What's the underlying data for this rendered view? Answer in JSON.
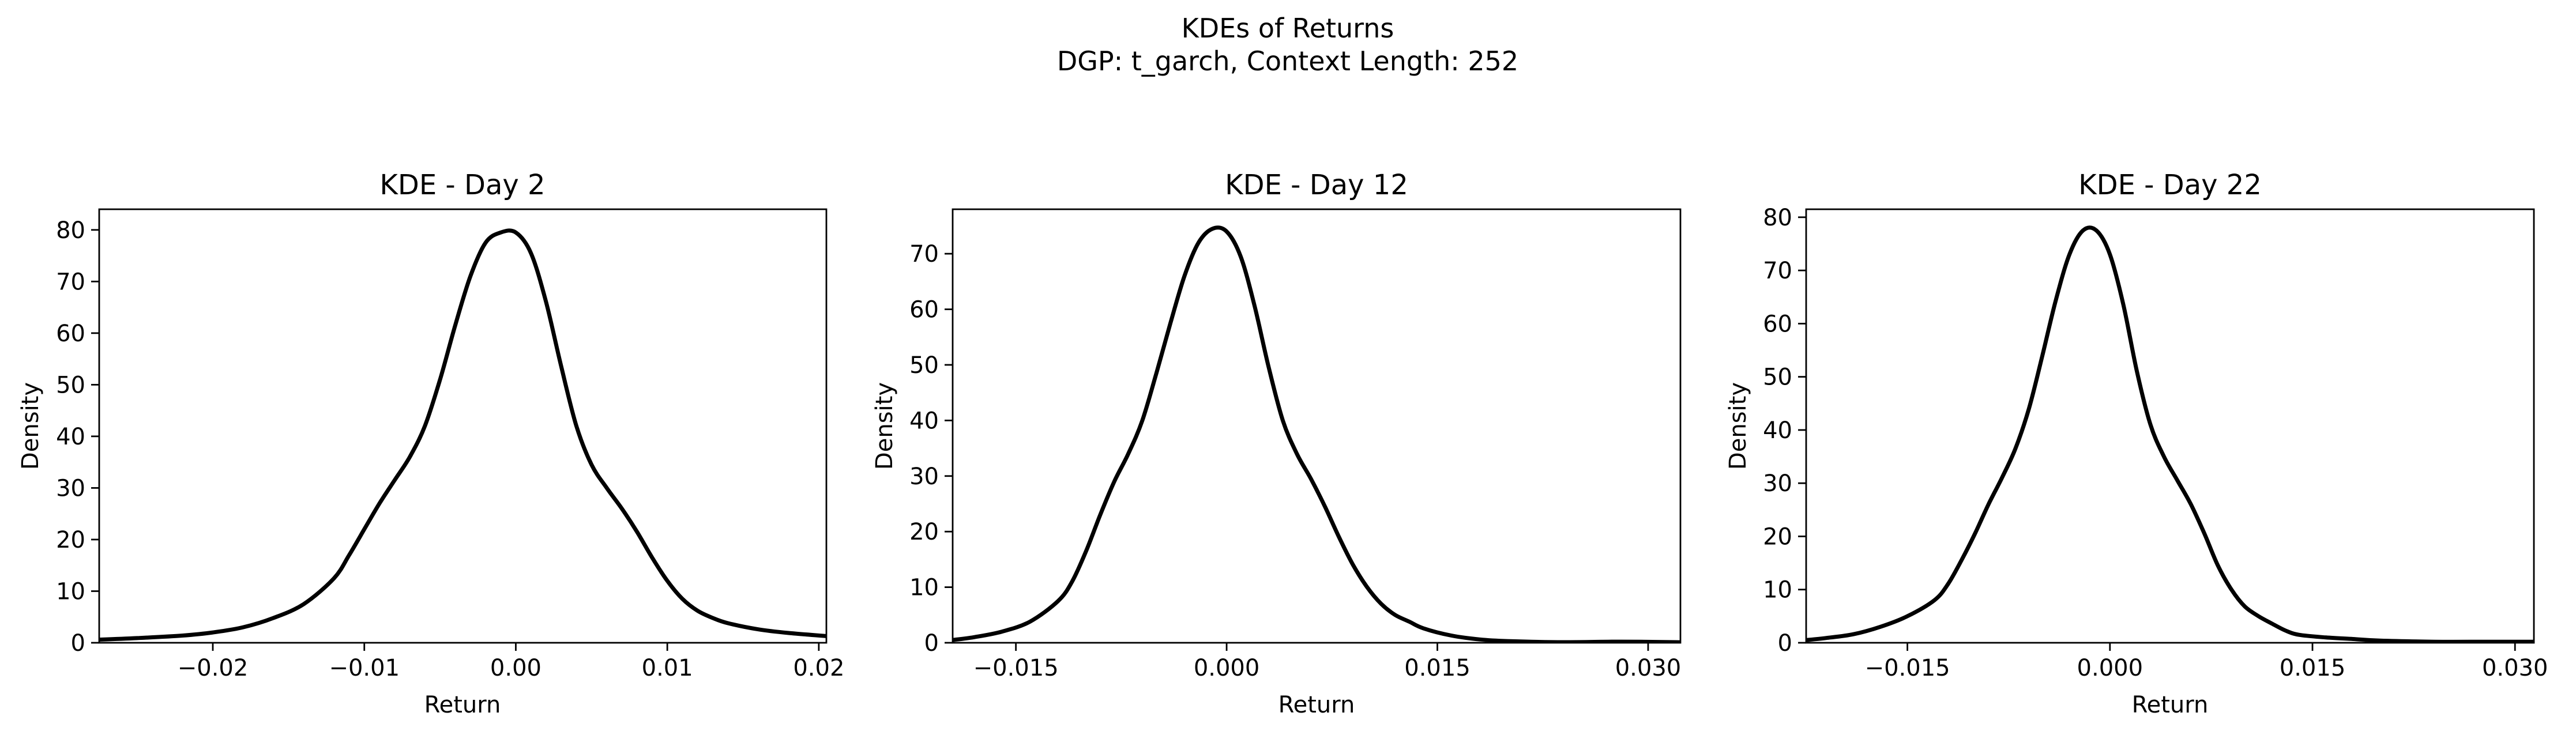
{
  "figure": {
    "suptitle_line1": "KDEs of Returns",
    "suptitle_line2": "DGP: t_garch, Context Length: 252"
  },
  "chart_data": [
    {
      "type": "line",
      "title": "KDE - Day 2",
      "xlabel": "Return",
      "ylabel": "Density",
      "xlim": [
        -0.0275,
        0.0205
      ],
      "ylim": [
        0,
        84
      ],
      "xticks": [
        -0.02,
        -0.01,
        0.0,
        0.01,
        0.02
      ],
      "xtick_labels": [
        "−0.02",
        "−0.01",
        "0.00",
        "0.01",
        "0.02"
      ],
      "yticks": [
        0,
        10,
        20,
        30,
        40,
        50,
        60,
        70,
        80
      ],
      "ytick_labels": [
        "0",
        "10",
        "20",
        "30",
        "40",
        "50",
        "60",
        "70",
        "80"
      ],
      "grid": false,
      "legend": "none",
      "series": [
        {
          "color": "#000000",
          "x": [
            -0.0275,
            -0.025,
            -0.022,
            -0.02,
            -0.018,
            -0.016,
            -0.014,
            -0.012,
            -0.011,
            -0.01,
            -0.009,
            -0.008,
            -0.007,
            -0.006,
            -0.005,
            -0.004,
            -0.003,
            -0.002,
            -0.001,
            0.0,
            0.001,
            0.002,
            0.003,
            0.004,
            0.005,
            0.006,
            0.007,
            0.008,
            0.009,
            0.01,
            0.011,
            0.012,
            0.013,
            0.014,
            0.016,
            0.018,
            0.0205
          ],
          "y": [
            0.6,
            0.9,
            1.4,
            2.0,
            3.0,
            4.8,
            7.5,
            12.5,
            17.0,
            22.0,
            27.0,
            31.5,
            36.0,
            42.0,
            51.0,
            61.5,
            71.0,
            77.5,
            79.5,
            79.5,
            75.5,
            66.0,
            53.5,
            42.0,
            34.5,
            30.0,
            26.0,
            21.5,
            16.5,
            12.0,
            8.5,
            6.2,
            4.8,
            3.8,
            2.6,
            1.9,
            1.3
          ]
        }
      ]
    },
    {
      "type": "line",
      "title": "KDE - Day 12",
      "xlabel": "Return",
      "ylabel": "Density",
      "xlim": [
        -0.0195,
        0.0323
      ],
      "ylim": [
        0,
        78
      ],
      "xticks": [
        -0.015,
        0.0,
        0.015,
        0.03
      ],
      "xtick_labels": [
        "−0.015",
        "0.000",
        "0.015",
        "0.030"
      ],
      "yticks": [
        0,
        10,
        20,
        30,
        40,
        50,
        60,
        70
      ],
      "ytick_labels": [
        "0",
        "10",
        "20",
        "30",
        "40",
        "50",
        "60",
        "70"
      ],
      "grid": false,
      "legend": "none",
      "series": [
        {
          "color": "#000000",
          "x": [
            -0.0195,
            -0.018,
            -0.016,
            -0.014,
            -0.012,
            -0.011,
            -0.01,
            -0.009,
            -0.008,
            -0.007,
            -0.006,
            -0.005,
            -0.004,
            -0.003,
            -0.002,
            -0.001,
            0.0,
            0.001,
            0.002,
            0.003,
            0.004,
            0.005,
            0.006,
            0.007,
            0.008,
            0.009,
            0.01,
            0.011,
            0.012,
            0.013,
            0.014,
            0.016,
            0.018,
            0.02,
            0.024,
            0.028,
            0.032,
            0.0323
          ],
          "y": [
            0.5,
            1.0,
            2.0,
            3.8,
            7.5,
            11.0,
            16.5,
            23.0,
            29.0,
            34.0,
            40.0,
            48.5,
            57.5,
            66.0,
            72.0,
            74.5,
            74.0,
            69.5,
            60.5,
            49.5,
            40.0,
            34.0,
            29.5,
            24.5,
            19.0,
            14.0,
            10.0,
            7.0,
            5.0,
            3.8,
            2.6,
            1.3,
            0.6,
            0.3,
            0.1,
            0.2,
            0.1,
            0.1
          ]
        }
      ]
    },
    {
      "type": "line",
      "title": "KDE - Day 22",
      "xlabel": "Return",
      "ylabel": "Density",
      "xlim": [
        -0.0225,
        0.0314
      ],
      "ylim": [
        0,
        81.5
      ],
      "xticks": [
        -0.015,
        0.0,
        0.015,
        0.03
      ],
      "xtick_labels": [
        "−0.015",
        "0.000",
        "0.015",
        "0.030"
      ],
      "yticks": [
        0,
        10,
        20,
        30,
        40,
        50,
        60,
        70,
        80
      ],
      "ytick_labels": [
        "0",
        "10",
        "20",
        "30",
        "40",
        "50",
        "60",
        "70",
        "80"
      ],
      "grid": false,
      "legend": "none",
      "series": [
        {
          "color": "#000000",
          "x": [
            -0.0225,
            -0.021,
            -0.019,
            -0.017,
            -0.015,
            -0.013,
            -0.012,
            -0.011,
            -0.01,
            -0.009,
            -0.008,
            -0.007,
            -0.006,
            -0.005,
            -0.004,
            -0.003,
            -0.002,
            -0.001,
            0.0,
            0.001,
            0.002,
            0.003,
            0.004,
            0.005,
            0.006,
            0.007,
            0.008,
            0.009,
            0.01,
            0.011,
            0.012,
            0.013,
            0.014,
            0.016,
            0.018,
            0.02,
            0.024,
            0.028,
            0.0314
          ],
          "y": [
            0.5,
            0.9,
            1.6,
            3.0,
            5.0,
            8.0,
            11.0,
            15.5,
            20.5,
            26.0,
            31.0,
            36.5,
            44.0,
            54.0,
            64.5,
            73.0,
            77.5,
            77.5,
            73.0,
            63.5,
            51.0,
            41.0,
            35.0,
            30.5,
            26.0,
            20.5,
            14.5,
            10.0,
            6.8,
            5.0,
            3.6,
            2.3,
            1.5,
            1.0,
            0.7,
            0.4,
            0.2,
            0.2,
            0.2
          ]
        }
      ]
    }
  ]
}
